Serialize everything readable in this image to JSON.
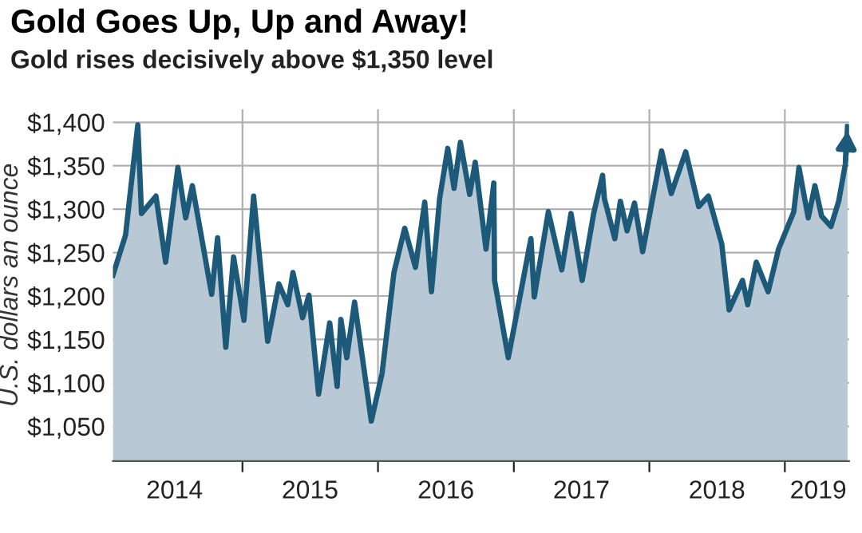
{
  "chart_data": {
    "type": "area",
    "title": "Gold Goes Up, Up and Away!",
    "subtitle": "Gold rises decisively above $1,350 level",
    "ylabel": "U.S. dollars an ounce",
    "x": [
      "2014-01-17",
      "2014-02-20",
      "2014-03-25",
      "2014-04-04",
      "2014-05-13",
      "2014-06-08",
      "2014-07-11",
      "2014-08-01",
      "2014-08-19",
      "2014-10-10",
      "2014-10-26",
      "2014-11-17",
      "2014-12-08",
      "2015-01-05",
      "2015-01-31",
      "2015-03-10",
      "2015-04-09",
      "2015-05-03",
      "2015-05-17",
      "2015-06-12",
      "2015-06-29",
      "2015-07-25",
      "2015-08-24",
      "2015-09-13",
      "2015-09-23",
      "2015-10-09",
      "2015-10-30",
      "2015-12-14",
      "2016-01-12",
      "2016-02-13",
      "2016-03-13",
      "2016-04-11",
      "2016-05-06",
      "2016-05-24",
      "2016-06-15",
      "2016-07-07",
      "2016-07-24",
      "2016-08-10",
      "2016-09-04",
      "2016-09-19",
      "2016-10-18",
      "2016-11-08",
      "2016-11-10",
      "2016-12-17",
      "2017-01-16",
      "2017-02-16",
      "2017-02-25",
      "2017-04-04",
      "2017-05-10",
      "2017-06-04",
      "2017-07-04",
      "2017-08-04",
      "2017-08-28",
      "2017-09-02",
      "2017-09-30",
      "2017-10-15",
      "2017-11-02",
      "2017-11-22",
      "2017-12-14",
      "2018-02-03",
      "2018-03-01",
      "2018-04-09",
      "2018-05-14",
      "2018-06-09",
      "2018-07-15",
      "2018-08-04",
      "2018-09-09",
      "2018-09-23",
      "2018-10-16",
      "2018-11-17",
      "2018-12-15",
      "2019-01-25",
      "2019-02-08",
      "2019-03-05",
      "2019-03-23",
      "2019-04-10",
      "2019-05-05",
      "2019-05-26",
      "2019-06-13",
      "2019-06-19"
    ],
    "series": [
      {
        "color": "#1d5a7a",
        "values": [
          1224,
          1270,
          1397,
          1295,
          1315,
          1239,
          1348,
          1290,
          1327,
          1202,
          1267,
          1141,
          1245,
          1172,
          1315,
          1148,
          1214,
          1190,
          1227,
          1175,
          1201,
          1087,
          1169,
          1096,
          1173,
          1129,
          1193,
          1056,
          1111,
          1227,
          1278,
          1233,
          1308,
          1205,
          1312,
          1370,
          1324,
          1377,
          1317,
          1354,
          1254,
          1330,
          1218,
          1129,
          1196,
          1266,
          1199,
          1297,
          1230,
          1295,
          1218,
          1295,
          1339,
          1312,
          1266,
          1309,
          1275,
          1307,
          1251,
          1367,
          1318,
          1366,
          1303,
          1315,
          1260,
          1184,
          1218,
          1190,
          1239,
          1205,
          1254,
          1297,
          1348,
          1290,
          1327,
          1292,
          1280,
          1309,
          1352,
          1395
        ]
      }
    ],
    "xlim": [
      "2014-01-17",
      "2019-06-23"
    ],
    "xticks": [
      {
        "value": "2014-07-02",
        "label": "2014"
      },
      {
        "value": "2015-01-01",
        "label": null
      },
      {
        "value": "2015-07-02",
        "label": "2015"
      },
      {
        "value": "2016-01-01",
        "label": null
      },
      {
        "value": "2016-07-02",
        "label": "2016"
      },
      {
        "value": "2017-01-01",
        "label": null
      },
      {
        "value": "2017-07-02",
        "label": "2017"
      },
      {
        "value": "2018-01-01",
        "label": null
      },
      {
        "value": "2018-07-02",
        "label": "2018"
      },
      {
        "value": "2019-01-01",
        "label": null
      },
      {
        "value": "2019-04-01",
        "label": "2019"
      }
    ],
    "ylim": [
      1010,
      1415
    ],
    "yticks": [
      {
        "value": 1050,
        "label": "$1,050"
      },
      {
        "value": 1100,
        "label": "$1,100"
      },
      {
        "value": 1150,
        "label": "$1,150"
      },
      {
        "value": 1200,
        "label": "$1,200"
      },
      {
        "value": 1250,
        "label": "$1,250"
      },
      {
        "value": 1300,
        "label": "$1,300"
      },
      {
        "value": 1350,
        "label": "$1,350"
      },
      {
        "value": 1400,
        "label": "$1,400"
      }
    ],
    "grid": true
  }
}
